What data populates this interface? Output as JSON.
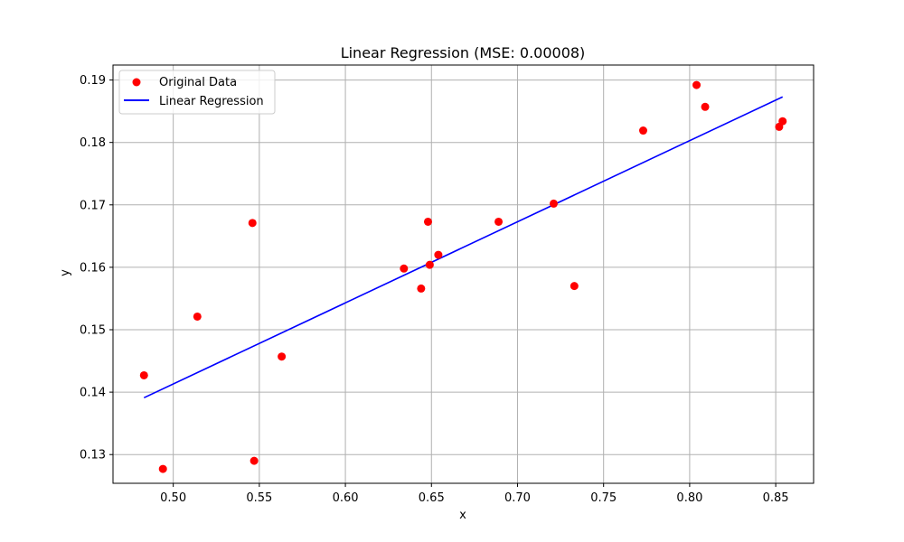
{
  "chart_data": {
    "type": "scatter",
    "title": "Linear Regression (MSE: 0.00008)",
    "xlabel": "x",
    "ylabel": "y",
    "xlim": [
      0.465,
      0.872
    ],
    "ylim": [
      0.1254,
      0.1924
    ],
    "xticks": [
      0.5,
      0.55,
      0.6,
      0.65,
      0.7,
      0.75,
      0.8,
      0.85
    ],
    "xtick_labels": [
      "0.50",
      "0.55",
      "0.60",
      "0.65",
      "0.70",
      "0.75",
      "0.80",
      "0.85"
    ],
    "yticks": [
      0.13,
      0.14,
      0.15,
      0.16,
      0.17,
      0.18,
      0.19
    ],
    "ytick_labels": [
      "0.13",
      "0.14",
      "0.15",
      "0.16",
      "0.17",
      "0.18",
      "0.19"
    ],
    "grid": true,
    "legend_position": "top-left",
    "series": [
      {
        "name": "Original Data",
        "kind": "scatter",
        "color": "#ff0000",
        "points": [
          [
            0.483,
            0.1427
          ],
          [
            0.494,
            0.1277
          ],
          [
            0.514,
            0.1521
          ],
          [
            0.546,
            0.1671
          ],
          [
            0.547,
            0.129
          ],
          [
            0.563,
            0.1457
          ],
          [
            0.634,
            0.1598
          ],
          [
            0.644,
            0.1566
          ],
          [
            0.648,
            0.1673
          ],
          [
            0.649,
            0.1604
          ],
          [
            0.654,
            0.162
          ],
          [
            0.689,
            0.1673
          ],
          [
            0.721,
            0.1702
          ],
          [
            0.733,
            0.157
          ],
          [
            0.773,
            0.1819
          ],
          [
            0.804,
            0.1892
          ],
          [
            0.809,
            0.1857
          ],
          [
            0.852,
            0.1825
          ],
          [
            0.854,
            0.1834
          ]
        ]
      },
      {
        "name": "Linear Regression",
        "kind": "line",
        "color": "#0000ff",
        "points": [
          [
            0.483,
            0.1391
          ],
          [
            0.854,
            0.1873
          ]
        ]
      }
    ]
  }
}
